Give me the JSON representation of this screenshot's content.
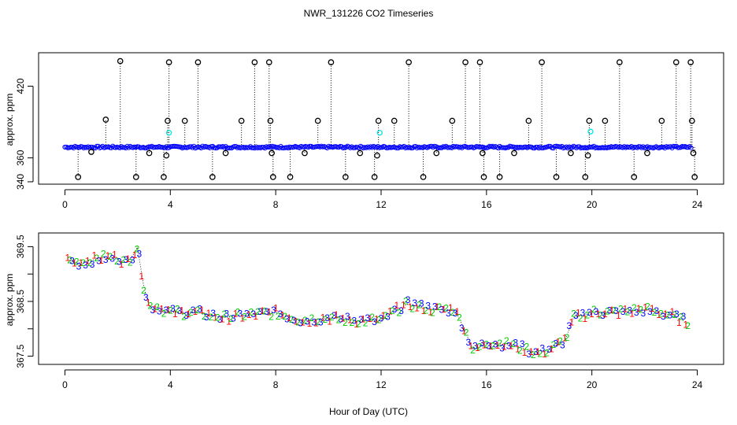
{
  "chart_data": [
    {
      "type": "scatter",
      "panel": "top",
      "title": "NWR_131226  CO2 Timeseries",
      "xlabel": "",
      "ylabel": "approx. ppm",
      "xlim": [
        -1.0,
        25.0
      ],
      "ylim": [
        338,
        448
      ],
      "xticks": [
        0,
        4,
        8,
        12,
        16,
        20,
        24
      ],
      "yticks": [
        340,
        360,
        420
      ],
      "yticklabels": [
        "340",
        "360",
        "420"
      ],
      "baseline": 369.0,
      "series": [
        {
          "name": "baseline",
          "color": "#0000ff",
          "note": "dense points near 369 ppm from hour 0 to 23.8"
        },
        {
          "name": "cyan",
          "color": "#00e5e5",
          "points": [
            [
              3.95,
              381
            ],
            [
              11.95,
              381
            ],
            [
              19.95,
              382
            ]
          ]
        },
        {
          "name": "spikes",
          "color": "#000000",
          "x": [
            0.5,
            1.0,
            1.55,
            2.1,
            2.7,
            3.2,
            3.75,
            3.85,
            3.9,
            3.95,
            4.55,
            5.05,
            5.6,
            6.1,
            6.7,
            7.2,
            7.75,
            7.8,
            7.85,
            7.9,
            8.55,
            9.1,
            9.6,
            10.1,
            10.65,
            11.2,
            11.75,
            11.85,
            11.9,
            12.5,
            13.05,
            13.6,
            14.1,
            14.7,
            15.2,
            15.75,
            15.85,
            15.9,
            16.5,
            17.05,
            17.6,
            18.1,
            18.65,
            19.2,
            19.75,
            19.85,
            19.9,
            20.5,
            21.05,
            21.6,
            22.1,
            22.65,
            23.2,
            23.75,
            23.8,
            23.85,
            23.9
          ],
          "y": [
            344,
            365,
            392,
            441,
            344,
            364,
            344,
            362,
            391,
            440,
            391,
            440,
            344,
            364,
            391,
            440,
            440,
            391,
            364,
            344,
            344,
            364,
            391,
            440,
            344,
            364,
            344,
            362,
            391,
            391,
            440,
            344,
            364,
            391,
            440,
            440,
            364,
            344,
            344,
            364,
            391,
            440,
            344,
            364,
            344,
            362,
            391,
            391,
            440,
            344,
            364,
            391,
            440,
            440,
            391,
            364,
            344
          ]
        }
      ]
    },
    {
      "type": "scatter",
      "panel": "bottom",
      "xlabel": "Hour of Day (UTC)",
      "ylabel": "approx. ppm",
      "xlim": [
        -1.0,
        25.0
      ],
      "ylim": [
        367.35,
        369.75
      ],
      "xticks": [
        0,
        4,
        8,
        12,
        16,
        20,
        24
      ],
      "yticks": [
        367.5,
        368.0,
        368.5,
        369.0,
        369.5
      ],
      "yticklabels": [
        "367.5",
        "",
        "368.5",
        "",
        "369.5"
      ],
      "marker_labels": [
        "1",
        "2",
        "3"
      ],
      "series": [
        {
          "name": "1",
          "color": "#ff0000"
        },
        {
          "name": "2",
          "color": "#00cc00"
        },
        {
          "name": "3",
          "color": "#0000ff"
        }
      ],
      "trend": {
        "x": [
          0.1,
          0.5,
          1.0,
          1.5,
          2.0,
          2.3,
          2.6,
          2.75,
          2.85,
          3.0,
          3.2,
          3.5,
          4.0,
          5.0,
          6.0,
          7.0,
          8.0,
          9.0,
          10.0,
          11.0,
          12.0,
          12.6,
          13.0,
          14.0,
          14.8,
          15.2,
          15.5,
          16.0,
          17.0,
          18.0,
          18.5,
          19.0,
          19.3,
          20.0,
          21.0,
          22.0,
          23.0,
          23.7
        ],
        "y": [
          369.25,
          369.2,
          369.25,
          369.3,
          369.3,
          369.2,
          369.35,
          369.5,
          369.2,
          368.75,
          368.4,
          368.4,
          368.3,
          368.3,
          368.2,
          368.25,
          368.3,
          368.15,
          368.2,
          368.15,
          368.15,
          368.35,
          368.45,
          368.35,
          368.35,
          367.95,
          367.6,
          367.75,
          367.7,
          367.55,
          367.65,
          367.8,
          368.2,
          368.3,
          368.3,
          368.35,
          368.25,
          368.1
        ]
      }
    }
  ]
}
